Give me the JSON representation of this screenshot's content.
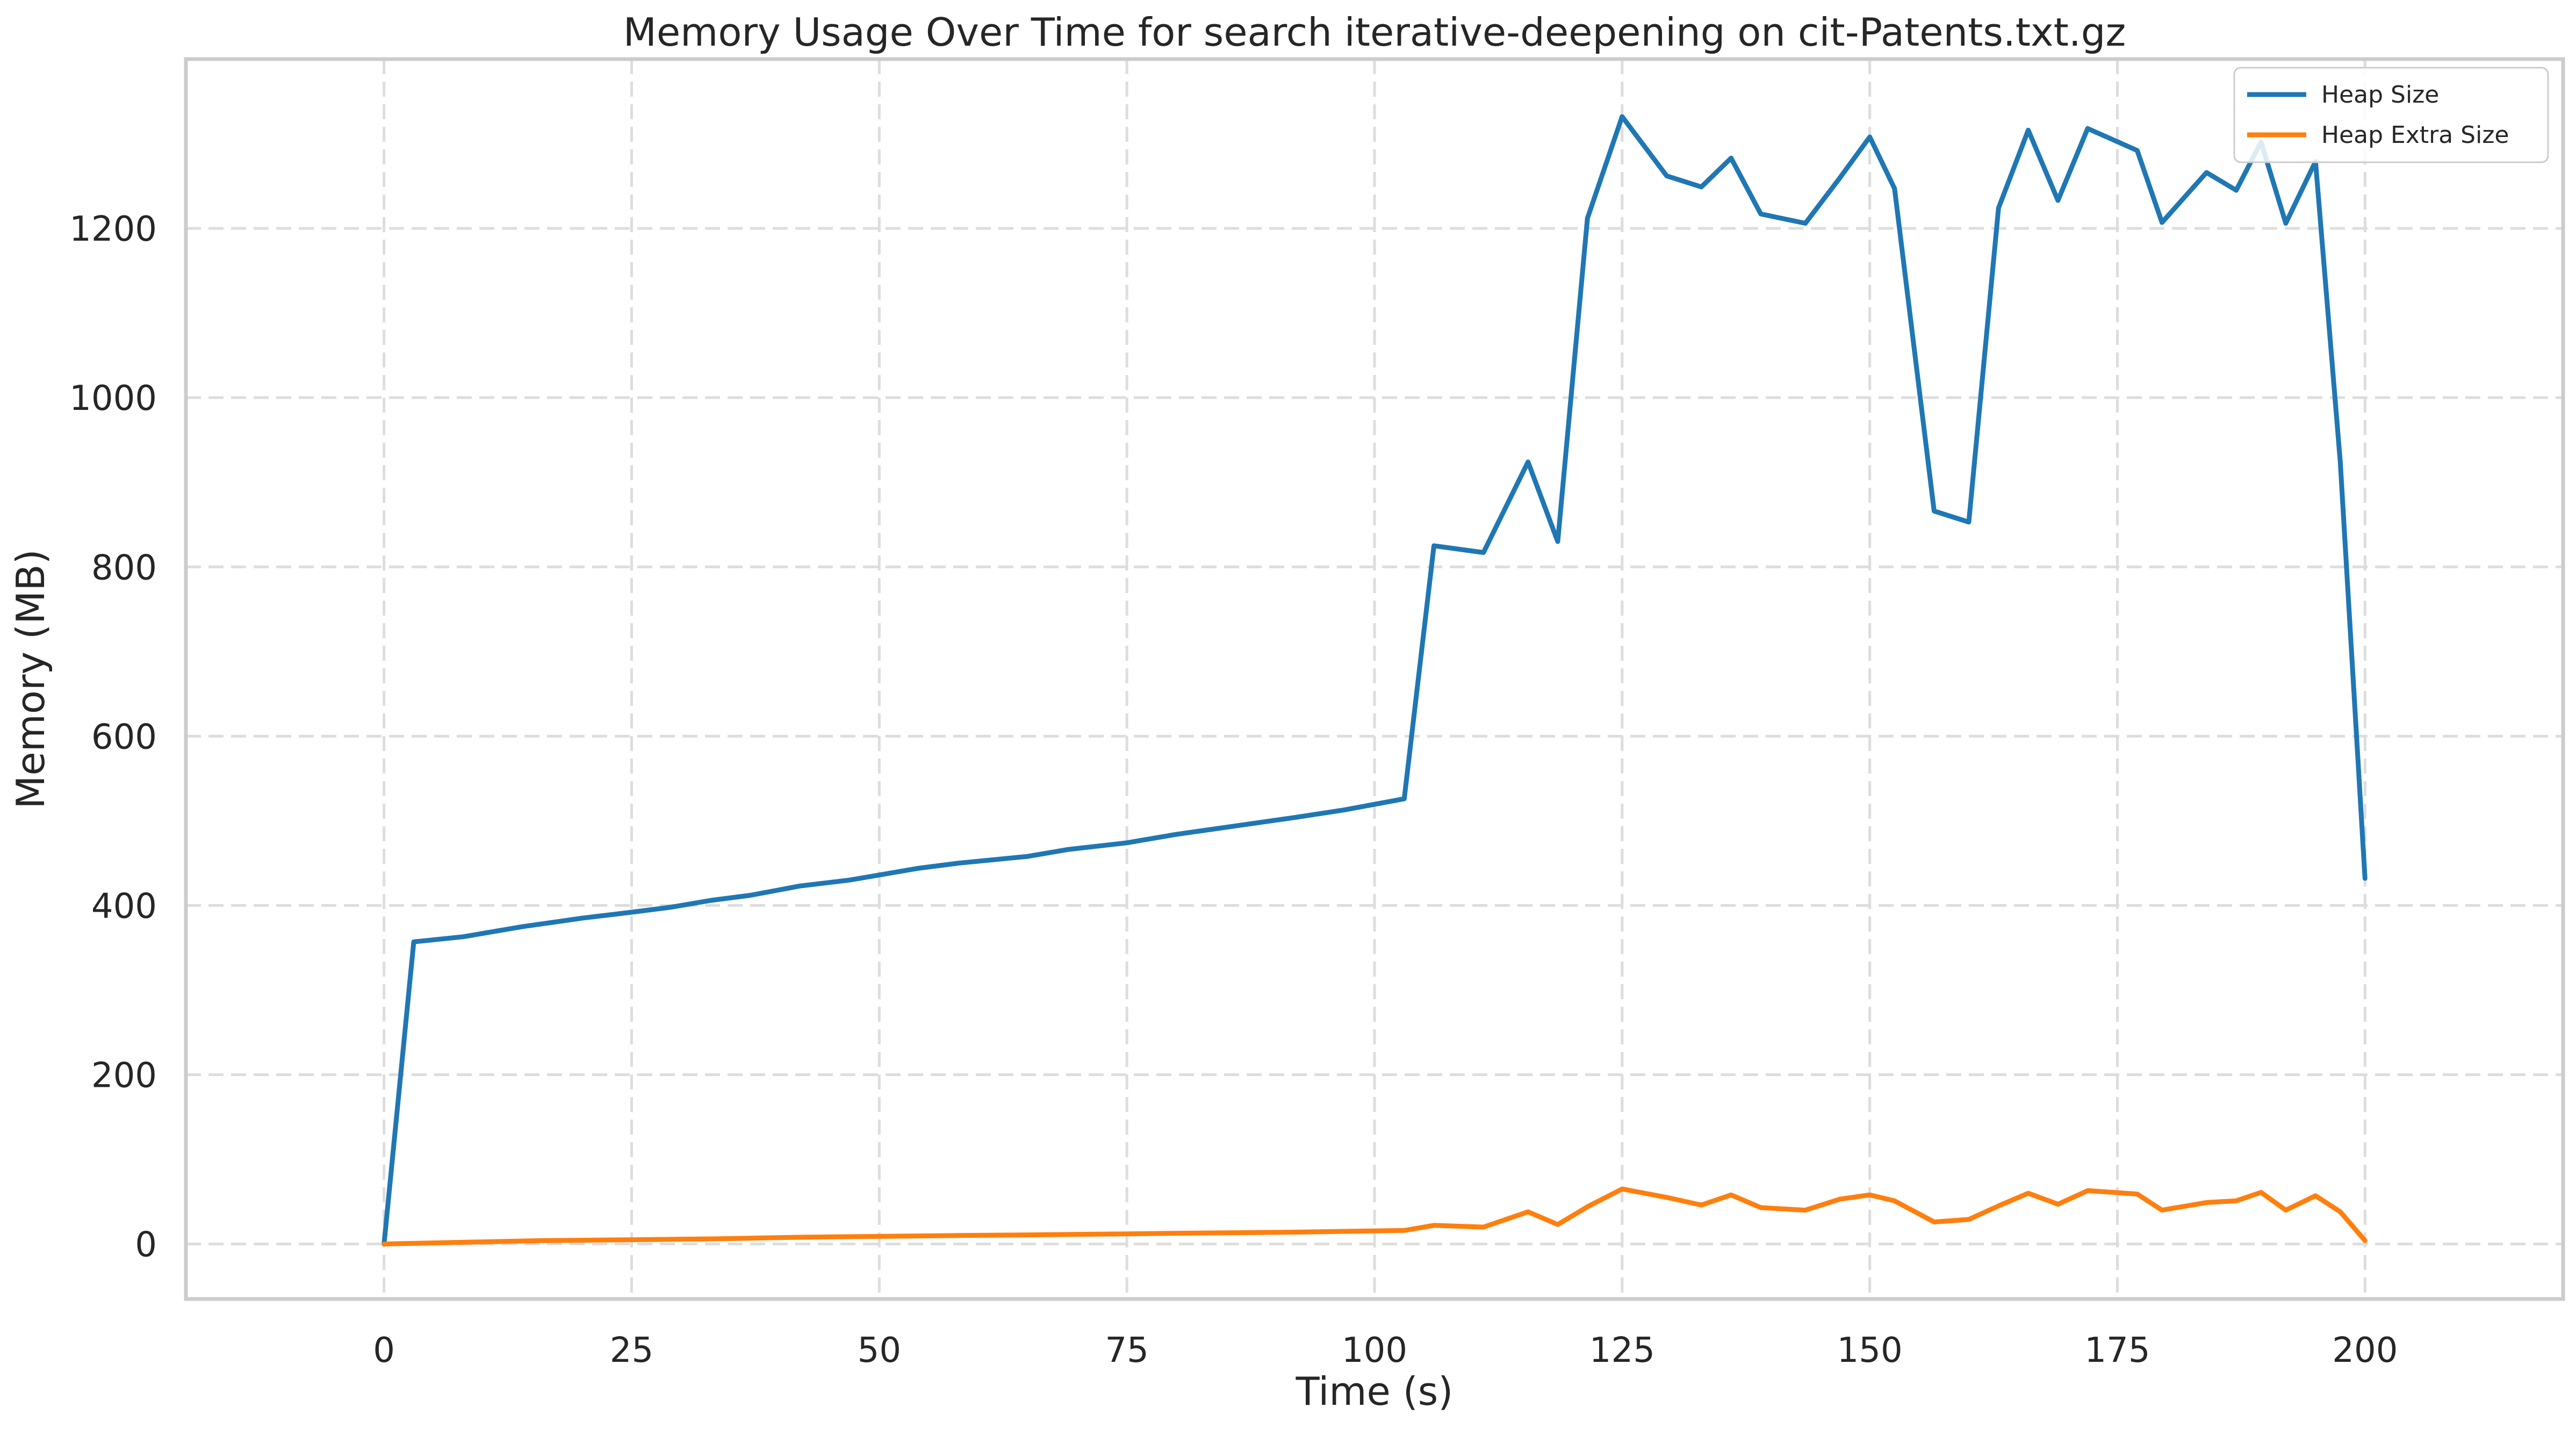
{
  "chart_data": {
    "type": "line",
    "title": "Memory Usage Over Time for search iterative-deepening on cit-Patents.txt.gz",
    "xlabel": "Time (s)",
    "ylabel": "Memory (MB)",
    "xlim": [
      -20,
      220
    ],
    "ylim": [
      -65,
      1400
    ],
    "xticks": [
      0,
      25,
      50,
      75,
      100,
      125,
      150,
      175,
      200
    ],
    "yticks": [
      0,
      200,
      400,
      600,
      800,
      1000,
      1200
    ],
    "grid": true,
    "legend_position": "top-right",
    "series": [
      {
        "name": "Heap Size",
        "color": "#1f77b4",
        "points": [
          [
            0,
            0
          ],
          [
            3,
            357
          ],
          [
            8,
            363
          ],
          [
            14,
            375
          ],
          [
            20,
            385
          ],
          [
            25,
            392
          ],
          [
            29,
            398
          ],
          [
            33,
            406
          ],
          [
            37,
            412
          ],
          [
            42,
            423
          ],
          [
            47,
            430
          ],
          [
            54,
            444
          ],
          [
            58,
            450
          ],
          [
            65,
            458
          ],
          [
            69,
            466
          ],
          [
            75,
            474
          ],
          [
            80,
            484
          ],
          [
            86,
            494
          ],
          [
            92,
            504
          ],
          [
            97,
            513
          ],
          [
            103,
            526
          ],
          [
            106,
            825
          ],
          [
            111,
            817
          ],
          [
            115.5,
            924
          ],
          [
            118.5,
            830
          ],
          [
            121.5,
            1212
          ],
          [
            125,
            1332
          ],
          [
            129.5,
            1262
          ],
          [
            133,
            1249
          ],
          [
            136,
            1283
          ],
          [
            139,
            1217
          ],
          [
            143.5,
            1206
          ],
          [
            147,
            1260
          ],
          [
            150,
            1308
          ],
          [
            152.5,
            1247
          ],
          [
            156.5,
            866
          ],
          [
            160,
            853
          ],
          [
            163,
            1224
          ],
          [
            166,
            1316
          ],
          [
            169,
            1233
          ],
          [
            172,
            1318
          ],
          [
            177,
            1292
          ],
          [
            179.5,
            1207
          ],
          [
            184,
            1266
          ],
          [
            187,
            1245
          ],
          [
            189.5,
            1302
          ],
          [
            192,
            1206
          ],
          [
            195,
            1279
          ],
          [
            197.5,
            924
          ],
          [
            200,
            432
          ]
        ]
      },
      {
        "name": "Heap Extra Size",
        "color": "#ff7f0e",
        "points": [
          [
            0,
            0
          ],
          [
            8,
            2
          ],
          [
            16,
            4
          ],
          [
            25,
            5
          ],
          [
            33,
            6
          ],
          [
            42,
            8
          ],
          [
            50,
            9
          ],
          [
            58,
            10
          ],
          [
            67,
            11
          ],
          [
            75,
            12
          ],
          [
            83,
            13
          ],
          [
            92,
            14
          ],
          [
            103,
            16
          ],
          [
            106,
            22
          ],
          [
            111,
            20
          ],
          [
            115.5,
            38
          ],
          [
            118.5,
            23
          ],
          [
            121.5,
            44
          ],
          [
            125,
            65
          ],
          [
            129.5,
            55
          ],
          [
            133,
            46
          ],
          [
            136,
            58
          ],
          [
            139,
            43
          ],
          [
            143.5,
            40
          ],
          [
            147,
            53
          ],
          [
            150,
            58
          ],
          [
            152.5,
            51
          ],
          [
            156.5,
            26
          ],
          [
            160,
            29
          ],
          [
            163,
            45
          ],
          [
            166,
            60
          ],
          [
            169,
            47
          ],
          [
            172,
            63
          ],
          [
            177,
            59
          ],
          [
            179.5,
            40
          ],
          [
            184,
            49
          ],
          [
            187,
            51
          ],
          [
            189.5,
            61
          ],
          [
            192,
            40
          ],
          [
            195,
            57
          ],
          [
            197.5,
            38
          ],
          [
            200,
            4
          ]
        ]
      }
    ]
  }
}
